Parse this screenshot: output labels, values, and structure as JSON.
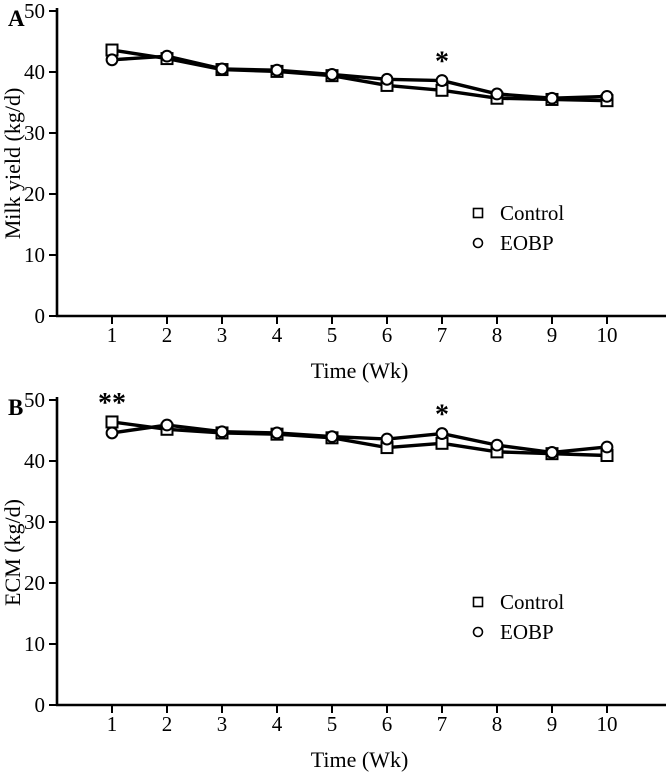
{
  "figure": {
    "background": "#ffffff",
    "ink_color": "#000000",
    "marker_fill": "#ffffff"
  },
  "chart_data": [
    {
      "type": "line",
      "panel_label": "A",
      "xlabel": "Time (Wk)",
      "ylabel": "Milk yield (kg/d)",
      "x": [
        1,
        2,
        3,
        4,
        5,
        6,
        7,
        8,
        9,
        10
      ],
      "xlim": [
        0,
        11
      ],
      "ylim": [
        0,
        50
      ],
      "yticks": [
        0,
        10,
        20,
        30,
        40,
        50
      ],
      "grid": false,
      "legend_position": "inside-right-middle",
      "series": [
        {
          "name": "Control",
          "marker": "square",
          "color": "#000000",
          "values": [
            43.6,
            42.2,
            40.4,
            40.1,
            39.4,
            37.8,
            37.0,
            35.7,
            35.5,
            35.3
          ]
        },
        {
          "name": "EOBP",
          "marker": "circle",
          "color": "#000000",
          "values": [
            42.0,
            42.6,
            40.5,
            40.3,
            39.6,
            38.8,
            38.6,
            36.4,
            35.7,
            36.0
          ]
        }
      ],
      "annotations": [
        {
          "x": 7,
          "symbol": "*"
        }
      ]
    },
    {
      "type": "line",
      "panel_label": "B",
      "xlabel": "Time (Wk)",
      "ylabel": "ECM (kg/d)",
      "x": [
        1,
        2,
        3,
        4,
        5,
        6,
        7,
        8,
        9,
        10
      ],
      "xlim": [
        0,
        11
      ],
      "ylim": [
        0,
        50
      ],
      "yticks": [
        0,
        10,
        20,
        30,
        40,
        50
      ],
      "grid": false,
      "legend_position": "inside-right-middle",
      "series": [
        {
          "name": "Control",
          "marker": "square",
          "color": "#000000",
          "values": [
            46.4,
            45.2,
            44.6,
            44.4,
            43.8,
            42.2,
            42.9,
            41.5,
            41.2,
            40.9
          ]
        },
        {
          "name": "EOBP",
          "marker": "circle",
          "color": "#000000",
          "values": [
            44.6,
            45.9,
            44.8,
            44.6,
            44.0,
            43.6,
            44.5,
            42.6,
            41.4,
            42.3
          ]
        }
      ],
      "annotations": [
        {
          "x": 1,
          "symbol": "**"
        },
        {
          "x": 7,
          "symbol": "*"
        }
      ]
    }
  ]
}
